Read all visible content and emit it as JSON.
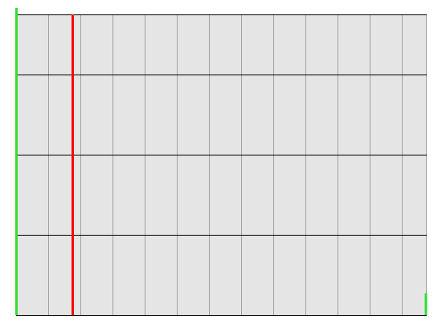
{
  "grid": {
    "columns": 13,
    "rows": 4,
    "background_color": "#e5e5e5",
    "major_line_color": "#000000",
    "minor_line_color": "#a0a0a0"
  },
  "markers": [
    {
      "name": "left-boundary-marker",
      "color": "#33dd33"
    },
    {
      "name": "playhead-marker",
      "color": "#ff0000"
    },
    {
      "name": "right-boundary-marker",
      "color": "#33dd33"
    }
  ]
}
